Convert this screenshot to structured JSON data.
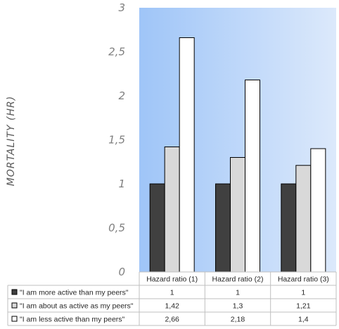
{
  "chart_data": {
    "type": "bar",
    "title": "",
    "xlabel": "",
    "ylabel": "MORTALITY (HR)",
    "ylim": [
      0,
      3
    ],
    "yticks": [
      "0",
      "0,5",
      "1",
      "1,5",
      "2",
      "2,5",
      "3"
    ],
    "categories": [
      "Hazard ratio (1)",
      "Hazard ratio (2)",
      "Hazard ratio (3)"
    ],
    "series": [
      {
        "name": "\"I am more active than my peers\"",
        "values": [
          1,
          1,
          1
        ],
        "display": [
          "1",
          "1",
          "1"
        ],
        "color": "#404040"
      },
      {
        "name": "\"I am about as active as my peers\"",
        "values": [
          1.42,
          1.3,
          1.21
        ],
        "display": [
          "1,42",
          "1,3",
          "1,21"
        ],
        "color": "#d9d9d9"
      },
      {
        "name": "\"I am less active than my peers\"",
        "values": [
          2.66,
          2.18,
          1.4
        ],
        "display": [
          "2,66",
          "2,18",
          "1,4"
        ],
        "color": "#ffffff"
      }
    ],
    "grid": false,
    "legend": "data table below chart",
    "plot_background": [
      "#9fc5f8",
      "#dce9fb"
    ]
  }
}
